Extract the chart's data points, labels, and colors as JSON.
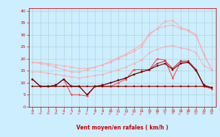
{
  "x": [
    0,
    1,
    2,
    3,
    4,
    5,
    6,
    7,
    8,
    9,
    10,
    11,
    12,
    13,
    14,
    15,
    16,
    17,
    18,
    19,
    20,
    21,
    22,
    23
  ],
  "series": [
    {
      "name": "line_pink_top1",
      "color": "#ffaaaa",
      "linewidth": 0.7,
      "marker": "D",
      "markersize": 1.5,
      "values": [
        18.5,
        18.5,
        18.0,
        17.5,
        17.0,
        16.5,
        16.0,
        16.0,
        16.5,
        17.5,
        18.5,
        20.0,
        21.5,
        23.0,
        25.0,
        30.0,
        32.5,
        35.5,
        36.0,
        33.0,
        32.0,
        30.0,
        22.0,
        15.5
      ]
    },
    {
      "name": "line_pink_top2",
      "color": "#ffaaaa",
      "linewidth": 0.7,
      "marker": "D",
      "markersize": 1.5,
      "values": [
        18.5,
        18.0,
        17.5,
        16.5,
        15.5,
        14.5,
        14.5,
        15.5,
        16.5,
        17.5,
        19.0,
        20.5,
        22.0,
        24.0,
        26.0,
        30.5,
        32.5,
        33.5,
        34.0,
        32.5,
        31.5,
        29.5,
        21.5,
        15.5
      ]
    },
    {
      "name": "line_pink_mid",
      "color": "#ffaaaa",
      "linewidth": 0.7,
      "marker": "D",
      "markersize": 1.5,
      "values": [
        14.5,
        14.5,
        14.0,
        13.5,
        13.0,
        12.5,
        12.0,
        12.5,
        13.0,
        13.5,
        14.5,
        15.5,
        16.5,
        18.0,
        19.5,
        22.5,
        24.0,
        25.0,
        25.5,
        24.5,
        24.0,
        22.5,
        17.0,
        15.5
      ]
    },
    {
      "name": "line_red_jagged",
      "color": "#ff4444",
      "linewidth": 0.8,
      "marker": "D",
      "markersize": 1.5,
      "values": [
        11.5,
        8.5,
        8.5,
        9.0,
        11.5,
        5.0,
        5.0,
        4.5,
        8.5,
        8.5,
        8.5,
        10.0,
        11.5,
        15.5,
        15.5,
        15.5,
        20.0,
        19.5,
        12.0,
        18.5,
        18.5,
        15.5,
        8.5,
        7.5
      ]
    },
    {
      "name": "line_dark_flat",
      "color": "#990000",
      "linewidth": 0.9,
      "marker": "s",
      "markersize": 1.5,
      "values": [
        8.5,
        8.5,
        8.5,
        8.5,
        8.5,
        8.5,
        8.5,
        8.5,
        8.5,
        8.5,
        8.5,
        8.5,
        8.5,
        8.5,
        8.5,
        8.5,
        8.5,
        8.5,
        8.5,
        8.5,
        8.5,
        8.5,
        8.5,
        8.0
      ]
    },
    {
      "name": "line_dark_med",
      "color": "#cc2222",
      "linewidth": 0.8,
      "marker": "s",
      "markersize": 1.5,
      "values": [
        11.5,
        8.5,
        8.5,
        9.0,
        11.5,
        8.5,
        8.5,
        5.0,
        8.5,
        9.0,
        10.0,
        11.0,
        12.0,
        13.5,
        14.5,
        15.5,
        18.0,
        19.0,
        16.0,
        19.0,
        19.0,
        15.5,
        9.0,
        8.0
      ]
    },
    {
      "name": "line_darkest",
      "color": "#660000",
      "linewidth": 0.8,
      "marker": "s",
      "markersize": 1.5,
      "values": [
        11.5,
        8.5,
        8.5,
        9.0,
        11.5,
        8.5,
        8.5,
        5.0,
        8.5,
        9.0,
        10.0,
        11.0,
        12.0,
        13.5,
        14.5,
        15.5,
        17.0,
        18.0,
        15.5,
        18.0,
        18.5,
        15.0,
        9.0,
        8.0
      ]
    }
  ],
  "wind_angles": [
    0,
    0,
    0,
    0,
    30,
    45,
    45,
    45,
    45,
    45,
    45,
    60,
    60,
    60,
    60,
    75,
    75,
    75,
    75,
    60,
    45,
    30,
    0,
    0
  ],
  "xlabel": "Vent moyen/en rafales ( km/h )",
  "xlim": [
    -0.5,
    23.5
  ],
  "ylim": [
    0,
    41
  ],
  "yticks": [
    0,
    5,
    10,
    15,
    20,
    25,
    30,
    35,
    40
  ],
  "xticks": [
    0,
    1,
    2,
    3,
    4,
    5,
    6,
    7,
    8,
    9,
    10,
    11,
    12,
    13,
    14,
    15,
    16,
    17,
    18,
    19,
    20,
    21,
    22,
    23
  ],
  "bg_color": "#cceeff",
  "grid_color": "#aacccc",
  "label_color": "#cc0000",
  "arrow_color": "#ff6666",
  "spine_color": "#cc0000"
}
